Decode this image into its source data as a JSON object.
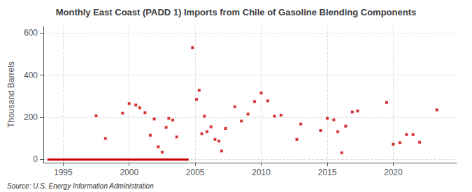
{
  "chart_data": {
    "type": "scatter",
    "title": "Monthly East Coast (PADD 1) Imports from Chile of Gasoline Blending Components",
    "ylabel": "Thousand Barrels",
    "annotations": [
      "Source: U.S. Energy Information Administration"
    ],
    "xlim": [
      1993.5,
      2024.8
    ],
    "ylim": [
      -15,
      630
    ],
    "xticks": [
      1995,
      2000,
      2005,
      2010,
      2015,
      2020
    ],
    "yticks": [
      0,
      200,
      400,
      600
    ],
    "grid": true,
    "series": [
      {
        "type": "scatter",
        "color": "#cc0000",
        "marker": "square",
        "x": [
          1997.5,
          1998.2,
          1999.5,
          2000.0,
          2000.5,
          2000.8,
          2001.2,
          2001.6,
          2001.9,
          2002.2,
          2002.5,
          2002.8,
          2003.0,
          2003.3,
          2003.6,
          2004.8,
          2005.1,
          2005.3,
          2005.5,
          2005.7,
          2005.9,
          2006.2,
          2006.5,
          2006.8,
          2007.0,
          2007.3,
          2008.0,
          2008.5,
          2009.0,
          2009.5,
          2010.0,
          2010.5,
          2011.0,
          2011.5,
          2012.7,
          2013.0,
          2014.5,
          2015.0,
          2015.5,
          2015.8,
          2016.1,
          2016.4,
          2016.9,
          2017.3,
          2019.5,
          2020.0,
          2020.5,
          2021.0,
          2021.5,
          2022.0,
          2023.3
        ],
        "values": [
          207,
          100,
          220,
          265,
          258,
          245,
          222,
          115,
          192,
          60,
          35,
          152,
          195,
          187,
          107,
          530,
          285,
          328,
          122,
          205,
          132,
          155,
          95,
          87,
          40,
          147,
          250,
          182,
          215,
          275,
          315,
          278,
          205,
          210,
          95,
          168,
          137,
          195,
          188,
          132,
          32,
          158,
          225,
          230,
          270,
          72,
          80,
          118,
          118,
          82,
          235
        ]
      },
      {
        "type": "line",
        "color": "#cc0000",
        "line_style": "solid",
        "x": [
          1993.8,
          2004.5
        ],
        "values": [
          0,
          0
        ]
      }
    ]
  }
}
